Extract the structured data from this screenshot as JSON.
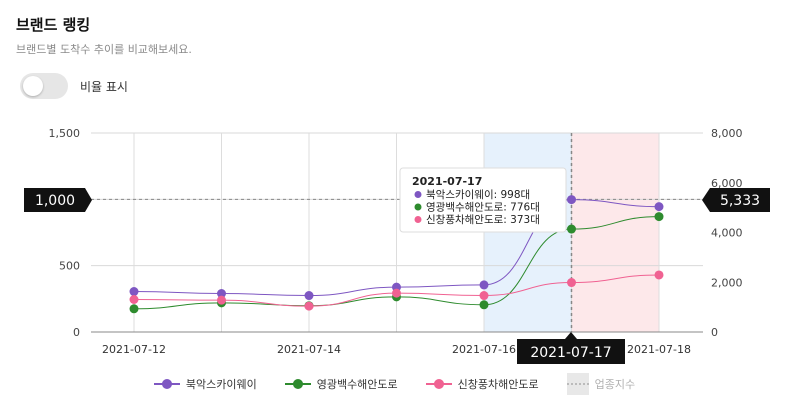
{
  "header": {
    "title": "브랜드 랭킹",
    "subtitle": "브랜드별 도착수 추이를 비교해보세요."
  },
  "toggle": {
    "label": "비율 표시",
    "on": false
  },
  "chart_data": {
    "type": "line",
    "x": [
      "2021-07-12",
      "2021-07-13",
      "2021-07-14",
      "2021-07-15",
      "2021-07-16",
      "2021-07-17",
      "2021-07-18"
    ],
    "x_tick_labels": [
      "2021-07-12",
      "",
      "2021-07-14",
      "",
      "2021-07-16",
      "",
      "2021-07-18"
    ],
    "y_left": {
      "min": 0,
      "max": 1500,
      "ticks": [
        0,
        500,
        1000,
        1500
      ],
      "tick_labels": [
        "0",
        "500",
        "1,000",
        "1,500"
      ]
    },
    "y_right": {
      "min": 0,
      "max": 8000,
      "ticks": [
        0,
        2000,
        4000,
        6000,
        8000
      ],
      "tick_labels": [
        "0",
        "2,000",
        "4,000",
        "6,000",
        "8,000"
      ]
    },
    "series": [
      {
        "name": "북악스카이웨이",
        "color": "#7e57c2",
        "values": [
          305,
          290,
          275,
          338,
          355,
          998,
          945
        ]
      },
      {
        "name": "영광백수해안도로",
        "color": "#2e8b2e",
        "values": [
          175,
          220,
          198,
          265,
          205,
          776,
          870
        ]
      },
      {
        "name": "신창풍차해안도로",
        "color": "#f06292",
        "values": [
          245,
          240,
          195,
          293,
          275,
          373,
          430
        ]
      }
    ],
    "area_series": {
      "name": "업종지수",
      "color": "#e8e8e8"
    },
    "highlight_bands": [
      {
        "from": "2021-07-16",
        "to": "2021-07-17",
        "color": "#e6f1fc"
      },
      {
        "from": "2021-07-17",
        "to": "2021-07-18",
        "color": "#fde8ea"
      }
    ],
    "grid": true,
    "legend_position": "bottom"
  },
  "crosshair": {
    "x_label": "2021-07-17",
    "y_left_label": "1,000",
    "y_right_label": "5,333",
    "y_left_value": 1000
  },
  "tooltip": {
    "date": "2021-07-17",
    "rows": [
      {
        "text": "북악스카이웨이: 998대",
        "color": "#7e57c2"
      },
      {
        "text": "영광백수해안도로: 776대",
        "color": "#2e8b2e"
      },
      {
        "text": "신창풍차해안도로: 373대",
        "color": "#f06292"
      }
    ]
  }
}
